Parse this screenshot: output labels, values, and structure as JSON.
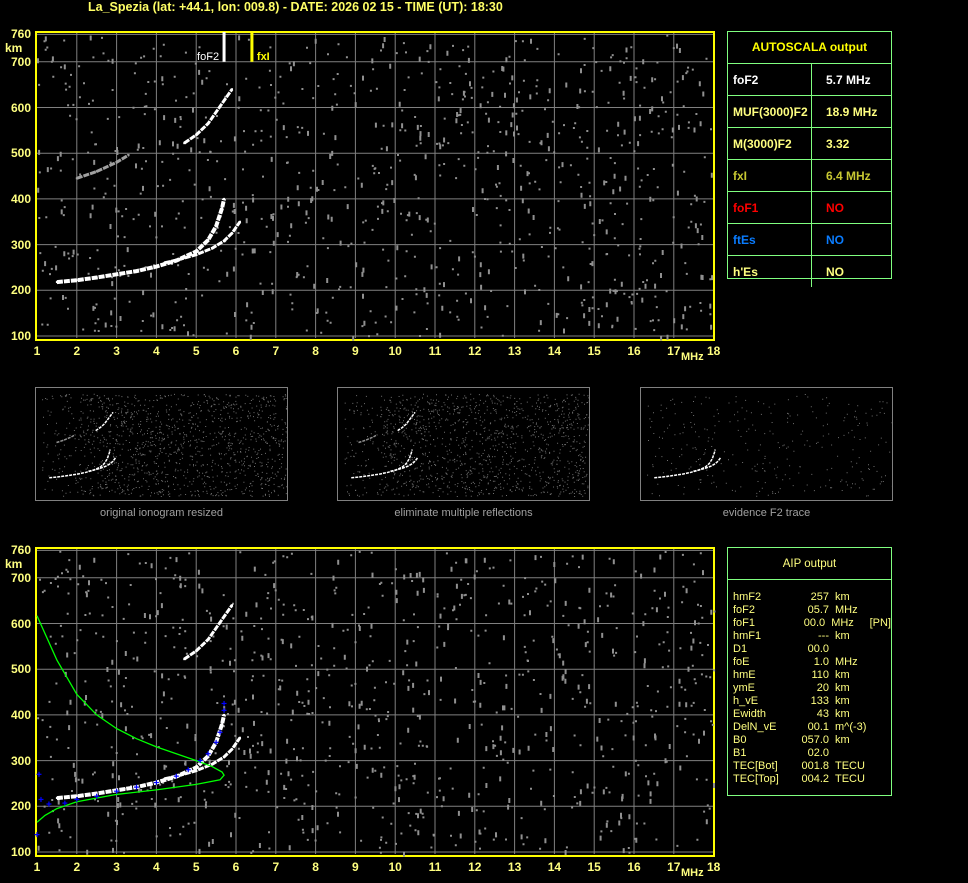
{
  "header": {
    "title": "La_Spezia (lat: +44.1, lon: 009.8) - DATE: 2026 02 15 - TIME (UT): 18:30"
  },
  "autoscala": {
    "title": "AUTOSCALA output",
    "rows": [
      {
        "param": "foF2",
        "value": "5.7 MHz",
        "color": "#ffffff"
      },
      {
        "param": "MUF(3000)F2",
        "value": "18.9 MHz",
        "color": "#ffff80"
      },
      {
        "param": "M(3000)F2",
        "value": "3.32",
        "color": "#ffff80"
      },
      {
        "param": "fxI",
        "value": "6.4 MHz",
        "color": "#c8c832"
      },
      {
        "param": "foF1",
        "value": "NO",
        "color": "#ff0000"
      },
      {
        "param": "ftEs",
        "value": "NO",
        "color": "#0a7cff"
      },
      {
        "param": "h'Es",
        "value": "NO",
        "color": "#ffff80"
      }
    ]
  },
  "aip": {
    "title": "AIP output",
    "rows": [
      {
        "p": "hmF2",
        "v": "257",
        "u": "km",
        "x": ""
      },
      {
        "p": "foF2",
        "v": "05.7",
        "u": "MHz",
        "x": ""
      },
      {
        "p": "foF1",
        "v": "00.0",
        "u": "MHz",
        "x": "[PN]"
      },
      {
        "p": "hmF1",
        "v": "---",
        "u": "km",
        "x": ""
      },
      {
        "p": "D1",
        "v": "00.0",
        "u": "",
        "x": ""
      },
      {
        "p": "foE",
        "v": "1.0",
        "u": "MHz",
        "x": ""
      },
      {
        "p": "hmE",
        "v": "110",
        "u": "km",
        "x": ""
      },
      {
        "p": "ymE",
        "v": "20",
        "u": "km",
        "x": ""
      },
      {
        "p": "h_vE",
        "v": "133",
        "u": "km",
        "x": ""
      },
      {
        "p": "Ewidth",
        "v": "43",
        "u": "km",
        "x": ""
      },
      {
        "p": "DelN_vE",
        "v": "00.1",
        "u": "m^(-3)",
        "x": ""
      },
      {
        "p": "B0",
        "v": "057.0",
        "u": "km",
        "x": ""
      },
      {
        "p": "B1",
        "v": "02.0",
        "u": "",
        "x": ""
      },
      {
        "p": "TEC[Bot]",
        "v": "001.8",
        "u": "TECU",
        "x": ""
      },
      {
        "p": "TEC[Top]",
        "v": "004.2",
        "u": "TECU",
        "x": ""
      }
    ]
  },
  "thumbnails": [
    {
      "caption": "original ionogram resized"
    },
    {
      "caption": "eliminate multiple reflections"
    },
    {
      "caption": "evidence F2 trace"
    }
  ],
  "colors": {
    "axis": "#ffff00",
    "grid": "#808080",
    "table_border": "#80ff80",
    "trace": "#ffffff",
    "noise": "#909090",
    "profile": "#00ff00",
    "fit": "#0000ff",
    "fxI_marker": "#ffff00"
  },
  "chart_data": [
    {
      "type": "scatter",
      "title": "",
      "xlabel": "MHz",
      "ylabel": "km",
      "xlim": [
        1,
        18
      ],
      "ylim": [
        100,
        760
      ],
      "xticks": [
        "1",
        "2",
        "3",
        "4",
        "5",
        "6",
        "7",
        "8",
        "9",
        "10",
        "11",
        "12",
        "13",
        "14",
        "15",
        "16",
        "17",
        "18"
      ],
      "yticks": [
        "760",
        "700",
        "600",
        "500",
        "400",
        "300",
        "200",
        "100"
      ],
      "grid": true,
      "markers": [
        {
          "label": "foF2",
          "freq": 5.7,
          "color": "#ffffff"
        },
        {
          "label": "fxI",
          "freq": 6.4,
          "color": "#ffff00"
        }
      ],
      "series": [
        {
          "kind": "o-trace",
          "points": [
            [
              1.5,
              218
            ],
            [
              2,
              222
            ],
            [
              2.5,
              228
            ],
            [
              3,
              235
            ],
            [
              3.5,
              242
            ],
            [
              4,
              252
            ],
            [
              4.5,
              265
            ],
            [
              5,
              285
            ],
            [
              5.3,
              310
            ],
            [
              5.5,
              340
            ],
            [
              5.65,
              380
            ],
            [
              5.7,
              400
            ]
          ]
        },
        {
          "kind": "x-trace",
          "points": [
            [
              4.2,
              260
            ],
            [
              4.6,
              268
            ],
            [
              5,
              278
            ],
            [
              5.4,
              292
            ],
            [
              5.7,
              308
            ],
            [
              5.9,
              325
            ],
            [
              6.1,
              350
            ]
          ]
        },
        {
          "kind": "second-hop",
          "points": [
            [
              4.7,
              522
            ],
            [
              5,
              540
            ],
            [
              5.3,
              565
            ],
            [
              5.5,
              590
            ],
            [
              5.7,
              615
            ],
            [
              5.9,
              640
            ]
          ]
        },
        {
          "kind": "second-hop-x",
          "points": [
            [
              2,
              445
            ],
            [
              2.5,
              460
            ],
            [
              3,
              480
            ],
            [
              3.3,
              496
            ]
          ]
        }
      ]
    },
    {
      "type": "scatter",
      "title": "",
      "xlabel": "MHz",
      "ylabel": "km",
      "xlim": [
        1,
        18
      ],
      "ylim": [
        100,
        760
      ],
      "xticks": [
        "1",
        "2",
        "3",
        "4",
        "5",
        "6",
        "7",
        "8",
        "9",
        "10",
        "11",
        "12",
        "13",
        "14",
        "15",
        "16",
        "17",
        "18"
      ],
      "yticks": [
        "760",
        "700",
        "600",
        "500",
        "400",
        "300",
        "200",
        "100"
      ],
      "grid": true,
      "series": [
        {
          "kind": "o-trace",
          "points": [
            [
              1.5,
              218
            ],
            [
              2,
              222
            ],
            [
              2.5,
              228
            ],
            [
              3,
              235
            ],
            [
              3.5,
              242
            ],
            [
              4,
              252
            ],
            [
              4.5,
              265
            ],
            [
              5,
              285
            ],
            [
              5.3,
              310
            ],
            [
              5.5,
              340
            ],
            [
              5.65,
              380
            ],
            [
              5.7,
              400
            ]
          ]
        },
        {
          "kind": "x-trace",
          "points": [
            [
              4.2,
              260
            ],
            [
              4.6,
              268
            ],
            [
              5,
              278
            ],
            [
              5.4,
              292
            ],
            [
              5.7,
              308
            ],
            [
              5.9,
              325
            ],
            [
              6.1,
              350
            ]
          ]
        },
        {
          "kind": "second-hop",
          "points": [
            [
              4.7,
              522
            ],
            [
              5,
              540
            ],
            [
              5.3,
              565
            ],
            [
              5.5,
              590
            ],
            [
              5.7,
              615
            ],
            [
              5.9,
              640
            ]
          ]
        },
        {
          "kind": "profile",
          "points": [
            [
              1,
              617
            ],
            [
              1.5,
              520
            ],
            [
              2,
              445
            ],
            [
              2.5,
              400
            ],
            [
              3,
              370
            ],
            [
              3.5,
              348
            ],
            [
              4,
              330
            ],
            [
              4.5,
              315
            ],
            [
              5,
              300
            ],
            [
              5.4,
              287
            ],
            [
              5.65,
              275
            ],
            [
              5.7,
              268
            ],
            [
              5.6,
              258
            ],
            [
              5,
              248
            ],
            [
              4,
              236
            ],
            [
              3,
              226
            ],
            [
              2,
              210
            ],
            [
              1.5,
              195
            ],
            [
              1.2,
              180
            ],
            [
              1,
              165
            ]
          ]
        },
        {
          "kind": "fit",
          "points": [
            [
              1.05,
              270
            ],
            [
              1.1,
              215
            ],
            [
              1.3,
              205
            ],
            [
              1.7,
              207
            ],
            [
              2,
              215
            ],
            [
              2.5,
              222
            ],
            [
              3,
              233
            ],
            [
              3.5,
              242
            ],
            [
              4,
              252
            ],
            [
              4.5,
              266
            ],
            [
              4.8,
              280
            ],
            [
              5.1,
              300
            ],
            [
              5.3,
              315
            ],
            [
              5.5,
              340
            ],
            [
              5.6,
              362
            ],
            [
              5.7,
              410
            ],
            [
              5.7,
              425
            ],
            [
              1,
              138
            ]
          ]
        }
      ]
    }
  ]
}
